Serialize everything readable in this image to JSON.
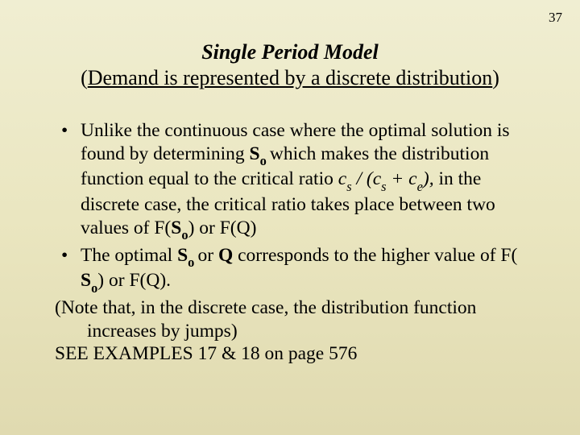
{
  "page_number": "37",
  "title": {
    "line1": "Single Period Model",
    "line2_open": "(",
    "line2_underlined": "Demand is represented by a discrete distribution",
    "line2_close": ")"
  },
  "bullets": {
    "marker": "•",
    "item1": {
      "t1": "Unlike the continuous case where the optimal solution is found by determining ",
      "So_bold": "S",
      "So_sub": "o ",
      "t2": "which makes the distribution function equal to the critical ratio ",
      "cs1": "c",
      "cs1_sub": "s",
      "t3": " / (",
      "cs2": "c",
      "cs2_sub": "s",
      "t4": " + ",
      "ce": "c",
      "ce_sub": "e",
      "t5": "), ",
      "t6": "in the discrete case, the critical ratio takes place between two values of F(",
      "So2_bold": "S",
      "So2_sub": "o",
      "t7": ") or F(Q)"
    },
    "item2": {
      "t1": "The optimal ",
      "So_bold": "S",
      "So_sub": "o ",
      "t2": "or ",
      "Q_bold": "Q ",
      "t3": " corresponds to the higher value of F( ",
      "So2_bold": "S",
      "So2_sub": "o",
      "t4": ") or F(Q)."
    }
  },
  "note": {
    "t1": "(Note that, in the discrete case, the distribution function increases by jumps)"
  },
  "footer": {
    "t1": "SEE EXAMPLES 17 & 18 on page 576"
  },
  "colors": {
    "text": "#000000",
    "bg_top": "#f0eed2",
    "bg_bottom": "#e0dab0"
  }
}
